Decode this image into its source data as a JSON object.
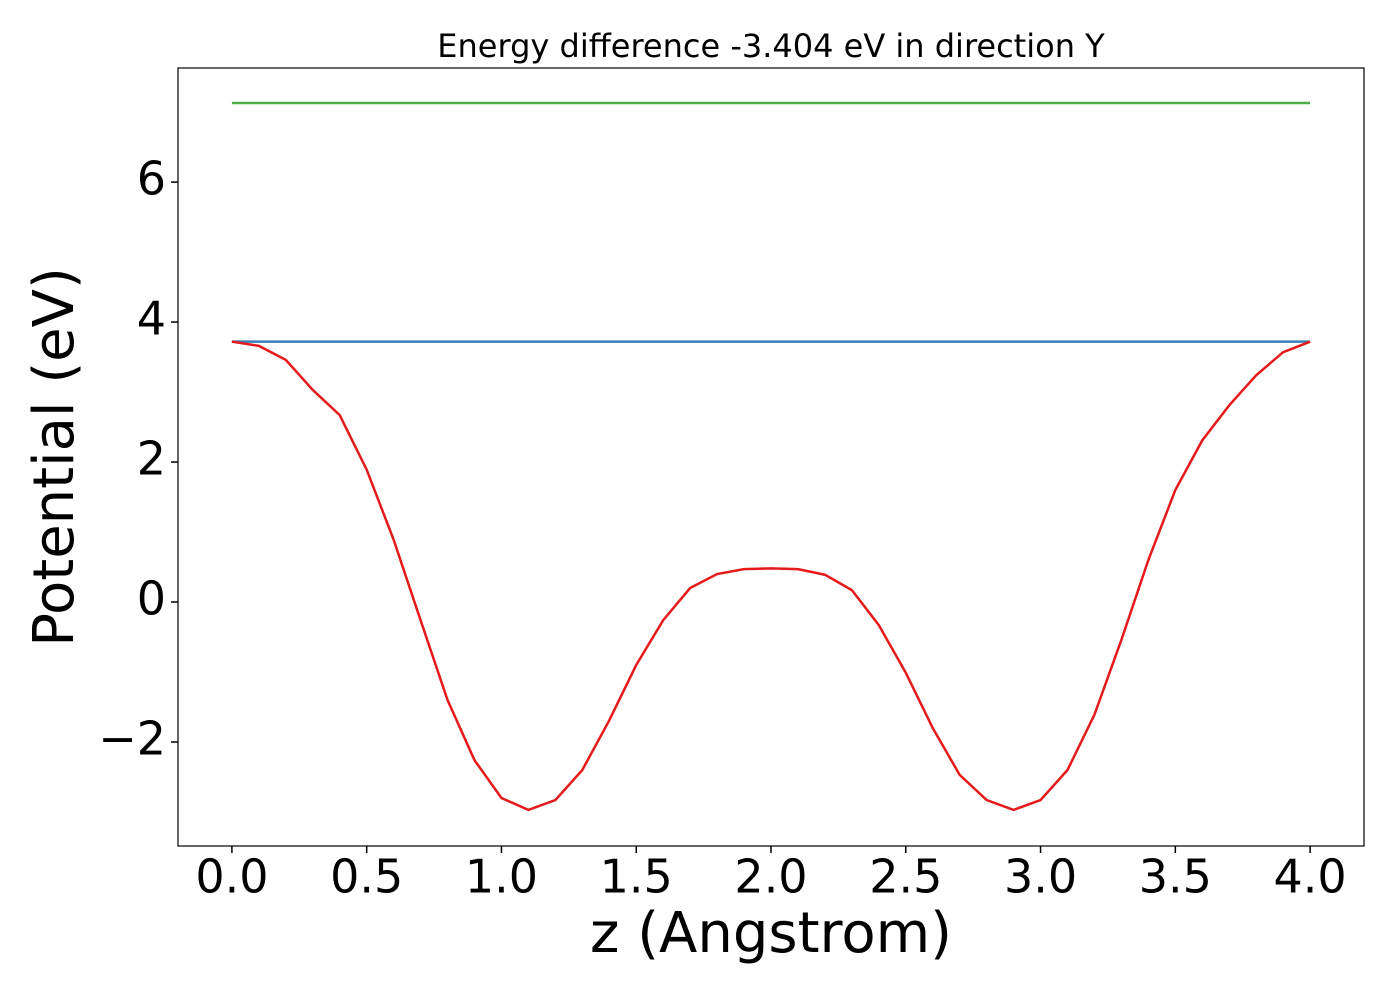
{
  "chart_data": {
    "type": "line",
    "title": "Energy difference -3.404 eV in direction Y",
    "x_label": "z (Angstrom)",
    "y_label": "Potential (eV)",
    "xlim": [
      -0.2,
      4.2
    ],
    "ylim": [
      -3.486,
      7.63
    ],
    "xticks": [
      {
        "value": 0,
        "label": "0.0"
      },
      0.5,
      {
        "value": 1,
        "label": "1.0"
      },
      1.5,
      {
        "value": 2,
        "label": "2.0"
      },
      2.5,
      {
        "value": 3,
        "label": "3.0"
      },
      3.5,
      {
        "value": 4,
        "label": "4.0"
      }
    ],
    "yticks": [
      {
        "value": -2,
        "label": "−2"
      },
      0,
      2,
      4,
      6
    ],
    "grid": false,
    "series": [
      {
        "color": "#e41a1c",
        "x": [
          0,
          0.1,
          0.2,
          0.3,
          0.4,
          0.5,
          0.6,
          0.7,
          0.8,
          0.9,
          1.0,
          1.1,
          1.2,
          1.3,
          1.4,
          1.5,
          1.6,
          1.7,
          1.8,
          1.9,
          2.0,
          2.1,
          2.2,
          2.3,
          2.4,
          2.5,
          2.6,
          2.7,
          2.8,
          2.9,
          3.0,
          3.1,
          3.2,
          3.3,
          3.4,
          3.5,
          3.6,
          3.7,
          3.8,
          3.9,
          4.0
        ],
        "values": [
          3.72,
          3.66,
          3.46,
          3.03,
          2.67,
          1.89,
          0.89,
          -0.26,
          -1.4,
          -2.26,
          -2.8,
          -2.97,
          -2.83,
          -2.4,
          -1.69,
          -0.9,
          -0.26,
          0.2,
          0.4,
          0.47,
          0.48,
          0.47,
          0.39,
          0.17,
          -0.33,
          -1.01,
          -1.8,
          -2.47,
          -2.83,
          -2.97,
          -2.83,
          -2.4,
          -1.61,
          -0.54,
          0.6,
          1.6,
          2.31,
          2.81,
          3.24,
          3.57,
          3.72
        ]
      },
      {
        "color": "#377eb8",
        "x": [
          0,
          4
        ],
        "values": [
          3.72,
          3.72
        ]
      },
      {
        "color": "#4daf4a",
        "x": [
          0,
          4
        ],
        "values": [
          7.13,
          7.13
        ]
      }
    ]
  }
}
